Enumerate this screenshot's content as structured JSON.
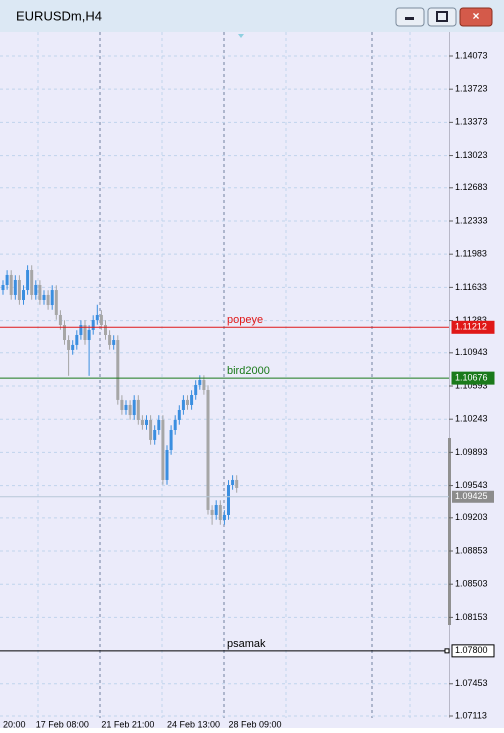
{
  "chart_data": {
    "type": "candlestick",
    "title": "EURUSDm,H4",
    "categories": [
      "20:00",
      null,
      null,
      null,
      null,
      null,
      null,
      null,
      "17 Feb 08:00",
      null,
      null,
      null,
      null,
      null,
      null,
      null,
      null,
      null,
      null,
      null,
      null,
      null,
      null,
      null,
      "21 Feb 21:00",
      null,
      null,
      null,
      null,
      null,
      null,
      null,
      null,
      null,
      null,
      null,
      null,
      null,
      null,
      null,
      "24 Feb 13:00",
      null,
      null,
      null,
      null,
      null,
      null,
      null,
      null,
      null,
      null,
      null,
      null,
      null,
      null,
      "28 Feb 09:00",
      null,
      null
    ],
    "open": [
      1.11605,
      1.11658,
      1.11764,
      1.11553,
      1.11711,
      1.115,
      1.11605,
      1.11816,
      1.11553,
      1.11658,
      1.115,
      1.11553,
      1.11447,
      1.11605,
      1.11342,
      1.11236,
      1.11078,
      1.10973,
      1.11026,
      1.11131,
      1.11236,
      1.11078,
      1.11184,
      1.11289,
      1.11342,
      1.11236,
      1.11131,
      1.11026,
      1.11078,
      1.10446,
      1.1034,
      1.10393,
      1.10287,
      1.10446,
      1.10235,
      1.10182,
      1.10235,
      1.10024,
      1.10129,
      1.10235,
      1.09602,
      1.09918,
      1.10129,
      1.10235,
      1.1034,
      1.10446,
      1.10393,
      1.10498,
      1.10604,
      1.10656,
      1.10551,
      1.09286,
      1.09233,
      1.09338,
      1.0918,
      1.09233,
      1.09549,
      1.09602
    ],
    "high": [
      1.11708,
      1.11814,
      1.11814,
      1.11761,
      1.11761,
      1.11655,
      1.11866,
      1.11866,
      1.11708,
      1.11708,
      1.11603,
      1.11603,
      1.11655,
      1.11655,
      1.11392,
      1.11286,
      1.11128,
      1.11076,
      1.11181,
      1.11286,
      1.11286,
      1.11234,
      1.11339,
      1.1145,
      1.11392,
      1.11286,
      1.11181,
      1.11128,
      1.11128,
      1.10496,
      1.10443,
      1.10443,
      1.10496,
      1.10496,
      1.10285,
      1.10285,
      1.10285,
      1.10179,
      1.10285,
      1.10285,
      1.09968,
      1.10179,
      1.10285,
      1.1039,
      1.10496,
      1.10496,
      1.10548,
      1.10654,
      1.10706,
      1.10706,
      1.10601,
      1.09336,
      1.09388,
      1.09388,
      1.09283,
      1.096,
      1.09652,
      1.09652
    ],
    "low": [
      1.11555,
      1.11608,
      1.11503,
      1.11503,
      1.1145,
      1.1145,
      1.11555,
      1.11503,
      1.11503,
      1.1145,
      1.1145,
      1.11397,
      1.11397,
      1.11292,
      1.11186,
      1.11028,
      1.107,
      1.10923,
      1.10976,
      1.11081,
      1.11028,
      1.107,
      1.11134,
      1.11239,
      1.11186,
      1.11081,
      1.10976,
      1.10976,
      1.10396,
      1.1029,
      1.1029,
      1.10237,
      1.10237,
      1.10185,
      1.10132,
      1.10132,
      1.09974,
      1.09974,
      1.10079,
      1.09552,
      1.09552,
      1.09868,
      1.10079,
      1.10185,
      1.1029,
      1.10343,
      1.10343,
      1.10448,
      1.10554,
      1.10501,
      1.09236,
      1.0913,
      1.09183,
      1.0913,
      1.0913,
      1.09183,
      1.09499,
      1.09468
    ],
    "close": [
      1.11658,
      1.11764,
      1.11553,
      1.11711,
      1.115,
      1.11605,
      1.11816,
      1.11553,
      1.11658,
      1.115,
      1.11553,
      1.11447,
      1.11605,
      1.11342,
      1.11236,
      1.11078,
      1.10973,
      1.11026,
      1.11131,
      1.11236,
      1.11078,
      1.11184,
      1.11289,
      1.11342,
      1.11236,
      1.11131,
      1.11026,
      1.11078,
      1.10446,
      1.1034,
      1.10393,
      1.10287,
      1.10446,
      1.10235,
      1.10182,
      1.10235,
      1.10024,
      1.10129,
      1.10235,
      1.09602,
      1.09918,
      1.10129,
      1.10235,
      1.1034,
      1.10446,
      1.10393,
      1.10498,
      1.10604,
      1.10656,
      1.10551,
      1.09286,
      1.09233,
      1.09338,
      1.0918,
      1.09233,
      1.09549,
      1.09602,
      1.09518
    ],
    "up_color": "#3a8ee0",
    "down_color": "#a6a6a6",
    "ylim": [
      1.07092,
      1.14326
    ],
    "yticks": [
      1.14073,
      1.13723,
      1.13373,
      1.13023,
      1.12683,
      1.12333,
      1.11983,
      1.11633,
      1.11283,
      1.10943,
      1.10593,
      1.10243,
      1.09893,
      1.09543,
      1.09203,
      1.08853,
      1.08503,
      1.08153,
      1.07453,
      1.07113
    ],
    "grid": true,
    "lines": [
      {
        "name": "popeye",
        "value": 1.11212,
        "value_label": "1.11212",
        "color": "#e01818"
      },
      {
        "name": "bird2000",
        "value": 1.10676,
        "value_label": "1.10676",
        "color": "#1a7a1a"
      },
      {
        "name": "psamak",
        "value": 1.078,
        "value_label": "1.07800",
        "color": "#000000"
      }
    ],
    "bid": {
      "value": 1.09425,
      "value_label": "1.09425",
      "color": "#8c8c8c"
    }
  }
}
